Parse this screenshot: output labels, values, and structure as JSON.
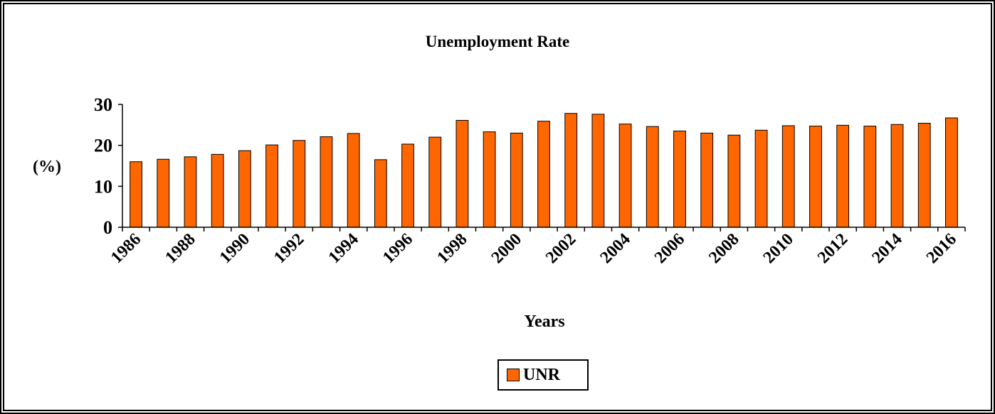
{
  "chart_data": {
    "type": "bar",
    "title": "Unemployment Rate",
    "xlabel": "Years",
    "ylabel": "(%)",
    "ylim": [
      0,
      30
    ],
    "yticks": [
      0,
      10,
      20,
      30
    ],
    "categories": [
      1986,
      1987,
      1988,
      1989,
      1990,
      1991,
      1992,
      1993,
      1994,
      1995,
      1996,
      1997,
      1998,
      1999,
      2000,
      2001,
      2002,
      2003,
      2004,
      2005,
      2006,
      2007,
      2008,
      2009,
      2010,
      2011,
      2012,
      2013,
      2014,
      2015,
      2016
    ],
    "xtick_labels": [
      "1986",
      "1988",
      "1990",
      "1992",
      "1994",
      "1996",
      "1998",
      "2000",
      "2002",
      "2004",
      "2006",
      "2008",
      "2010",
      "2012",
      "2014",
      "2016"
    ],
    "series": [
      {
        "name": "UNR",
        "color": "#ff6600",
        "values": [
          16.0,
          16.6,
          17.2,
          17.8,
          18.7,
          20.1,
          21.2,
          22.1,
          22.9,
          16.5,
          20.3,
          22.0,
          26.1,
          23.3,
          23.0,
          25.9,
          27.8,
          27.6,
          25.2,
          24.6,
          23.5,
          23.0,
          22.5,
          23.7,
          24.8,
          24.7,
          24.9,
          24.7,
          25.1,
          25.4,
          26.7
        ]
      }
    ],
    "legend": {
      "placement": "bottom-center"
    },
    "grid": false
  }
}
